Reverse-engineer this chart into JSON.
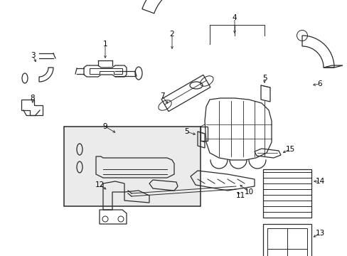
{
  "background_color": "#ffffff",
  "line_color": "#2a2a2a",
  "label_color": "#000000",
  "box_fill": "#ebebeb",
  "figsize": [
    4.89,
    3.6
  ],
  "dpi": 100,
  "lw": 0.9
}
